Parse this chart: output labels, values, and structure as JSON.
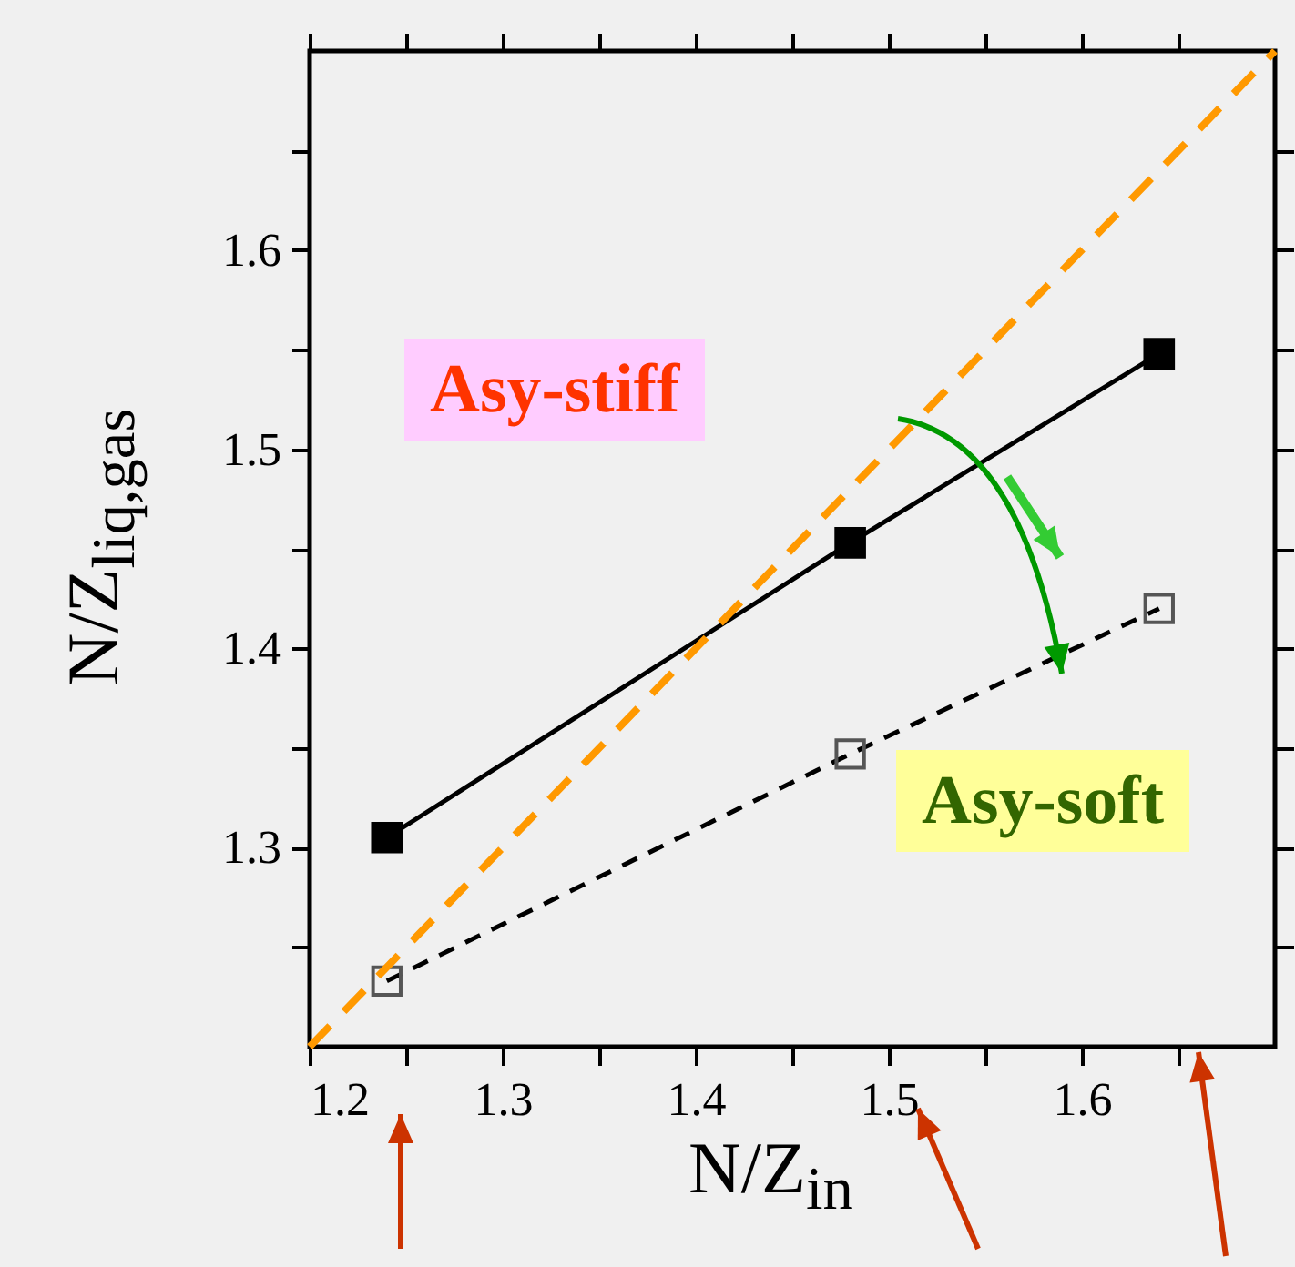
{
  "chart_data": {
    "type": "line",
    "xlabel": "N/Z$_{in}$",
    "ylabel": "N/Z$_{liq,gas}$",
    "xlim": [
      1.2,
      1.7
    ],
    "ylim": [
      1.2,
      1.7
    ],
    "xticks": [
      1.2,
      {
        "value": 1.25,
        "label": null
      },
      1.3,
      {
        "value": 1.35,
        "label": null
      },
      1.4,
      {
        "value": 1.45,
        "label": null
      },
      1.5,
      {
        "value": 1.55,
        "label": null
      },
      1.6,
      {
        "value": 1.65,
        "label": null
      }
    ],
    "yticks": [
      {
        "value": 1.25,
        "label": null
      },
      1.3,
      {
        "value": 1.35,
        "label": null
      },
      1.4,
      {
        "value": 1.45,
        "label": null
      },
      1.5,
      {
        "value": 1.55,
        "label": null
      },
      1.6,
      {
        "value": 1.65,
        "label": null
      }
    ],
    "grid": false,
    "annotations": [
      "Asy-stiff",
      "Asy-soft"
    ],
    "series": [
      {
        "color": "#000000",
        "x": [
          1.24,
          1.48,
          1.64
        ],
        "values": [
          1.305,
          1.453,
          1.548
        ],
        "marker": "square",
        "line_style": "solid"
      },
      {
        "color": "#000000",
        "x": [
          1.24,
          1.48,
          1.64
        ],
        "values": [
          1.233,
          1.347,
          1.42
        ],
        "marker": "square",
        "line_style": "dashed"
      },
      {
        "color": "#ff9900",
        "x": [
          1.2,
          1.7
        ],
        "values": [
          1.2,
          1.7
        ],
        "marker": "none",
        "line_style": "dashed"
      }
    ]
  }
}
